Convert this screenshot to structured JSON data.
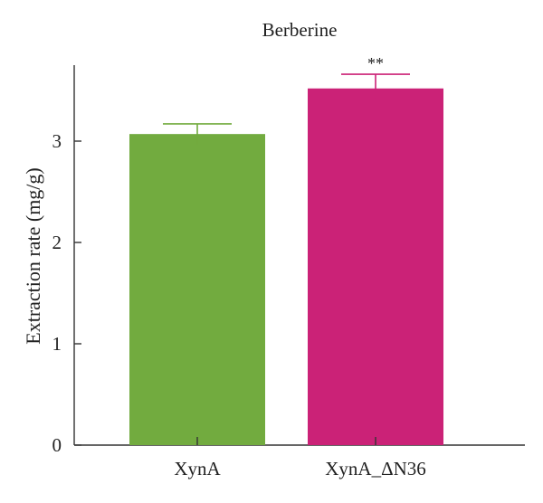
{
  "chart_data": {
    "type": "bar",
    "title": "Berberine",
    "xlabel": "",
    "ylabel": "Extraction rate (mg/g)",
    "ylim": [
      0,
      3.75
    ],
    "yticks": [
      0,
      1,
      2,
      3
    ],
    "categories": [
      "XynA",
      "XynA_ΔN36"
    ],
    "values": [
      3.07,
      3.52
    ],
    "errors": [
      0.1,
      0.14
    ],
    "colors": [
      "#72ab3f",
      "#cb2277"
    ],
    "annotations": [
      {
        "category_index": 1,
        "text": "**"
      }
    ],
    "grid": false,
    "legend": "none"
  }
}
